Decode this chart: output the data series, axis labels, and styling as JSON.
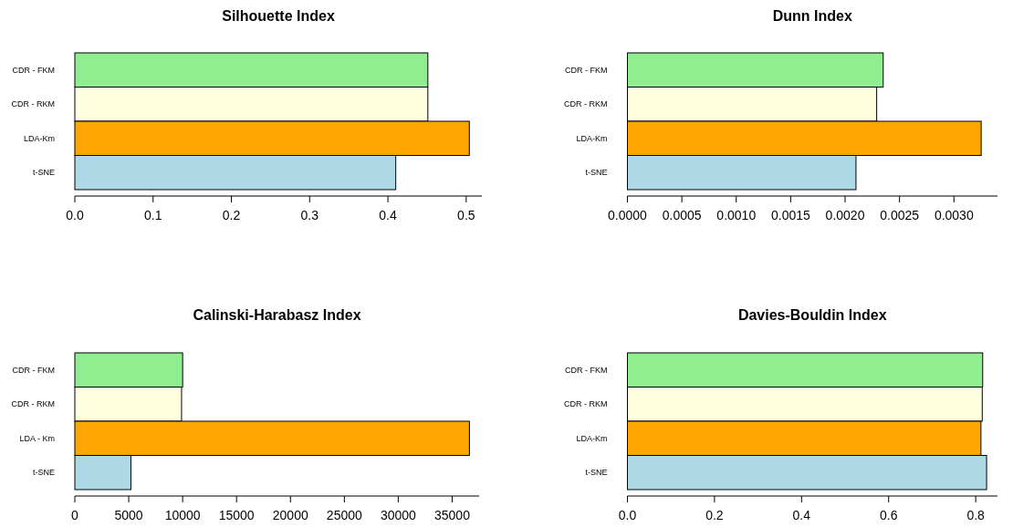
{
  "chart_data": [
    {
      "type": "bar",
      "orientation": "horizontal",
      "title": "Silhouette Index",
      "categories": [
        "CDR - FKM",
        "CDR - RKM",
        "LDA-Km",
        "t-SNE"
      ],
      "values": [
        0.451,
        0.451,
        0.504,
        0.41
      ],
      "colors": [
        "#90ee90",
        "#ffffe0",
        "#ffa500",
        "#add8e6"
      ],
      "xlim": [
        0,
        0.52
      ],
      "xticks": [
        {
          "value": 0,
          "label": "0.0"
        },
        0.1,
        0.2,
        0.3,
        0.4,
        0.5
      ]
    },
    {
      "type": "bar",
      "orientation": "horizontal",
      "title": "Dunn Index",
      "categories": [
        "CDR - FKM",
        "CDR - RKM",
        "LDA-Km",
        "t-SNE"
      ],
      "values": [
        0.00235,
        0.00229,
        0.00325,
        0.0021
      ],
      "colors": [
        "#90ee90",
        "#ffffe0",
        "#ffa500",
        "#add8e6"
      ],
      "xlim": [
        0,
        0.0034
      ],
      "xticks": [
        {
          "value": 0,
          "label": "0.0000"
        },
        0.0005,
        {
          "value": 0.001,
          "label": "0.0010"
        },
        0.0015,
        {
          "value": 0.002,
          "label": "0.0020"
        },
        0.0025,
        {
          "value": 0.003,
          "label": "0.0030"
        }
      ]
    },
    {
      "type": "bar",
      "orientation": "horizontal",
      "title": "Calinski-Harabasz Index",
      "categories": [
        "CDR - FKM",
        "CDR - RKM",
        "LDA - Km",
        "t-SNE"
      ],
      "values": [
        10000,
        9900,
        36600,
        5200
      ],
      "colors": [
        "#90ee90",
        "#ffffe0",
        "#ffa500",
        "#add8e6"
      ],
      "xlim": [
        0,
        37500
      ],
      "xticks": [
        0,
        5000,
        10000,
        15000,
        20000,
        25000,
        30000,
        35000
      ]
    },
    {
      "type": "bar",
      "orientation": "horizontal",
      "title": "Davies-Bouldin Index",
      "categories": [
        "CDR - FKM",
        "CDR - RKM",
        "LDA-Km",
        "t-SNE"
      ],
      "values": [
        0.816,
        0.815,
        0.812,
        0.825
      ],
      "colors": [
        "#90ee90",
        "#ffffe0",
        "#ffa500",
        "#add8e6"
      ],
      "xlim": [
        0,
        0.85
      ],
      "xticks": [
        {
          "value": 0,
          "label": "0.0"
        },
        0.2,
        0.4,
        0.6,
        0.8
      ]
    }
  ]
}
